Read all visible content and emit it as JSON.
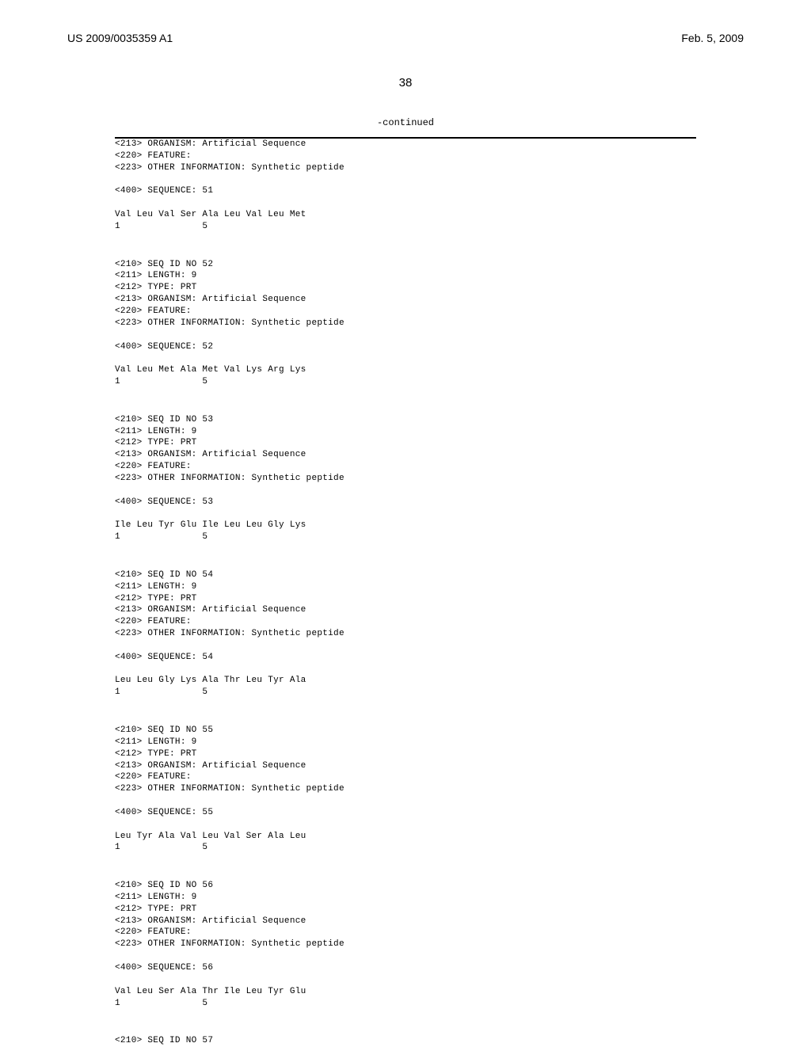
{
  "header": {
    "pub_no": "US 2009/0035359 A1",
    "date": "Feb. 5, 2009"
  },
  "page_number": "38",
  "continued": "-continued",
  "seq51": {
    "l213": "<213> ORGANISM: Artificial Sequence",
    "l220": "<220> FEATURE:",
    "l223": "<223> OTHER INFORMATION: Synthetic peptide",
    "l400": "<400> SEQUENCE: 51",
    "seq": "Val Leu Val Ser Ala Leu Val Leu Met",
    "pos": "1               5"
  },
  "seq52": {
    "l210": "<210> SEQ ID NO 52",
    "l211": "<211> LENGTH: 9",
    "l212": "<212> TYPE: PRT",
    "l213": "<213> ORGANISM: Artificial Sequence",
    "l220": "<220> FEATURE:",
    "l223": "<223> OTHER INFORMATION: Synthetic peptide",
    "l400": "<400> SEQUENCE: 52",
    "seq": "Val Leu Met Ala Met Val Lys Arg Lys",
    "pos": "1               5"
  },
  "seq53": {
    "l210": "<210> SEQ ID NO 53",
    "l211": "<211> LENGTH: 9",
    "l212": "<212> TYPE: PRT",
    "l213": "<213> ORGANISM: Artificial Sequence",
    "l220": "<220> FEATURE:",
    "l223": "<223> OTHER INFORMATION: Synthetic peptide",
    "l400": "<400> SEQUENCE: 53",
    "seq": "Ile Leu Tyr Glu Ile Leu Leu Gly Lys",
    "pos": "1               5"
  },
  "seq54": {
    "l210": "<210> SEQ ID NO 54",
    "l211": "<211> LENGTH: 9",
    "l212": "<212> TYPE: PRT",
    "l213": "<213> ORGANISM: Artificial Sequence",
    "l220": "<220> FEATURE:",
    "l223": "<223> OTHER INFORMATION: Synthetic peptide",
    "l400": "<400> SEQUENCE: 54",
    "seq": "Leu Leu Gly Lys Ala Thr Leu Tyr Ala",
    "pos": "1               5"
  },
  "seq55": {
    "l210": "<210> SEQ ID NO 55",
    "l211": "<211> LENGTH: 9",
    "l212": "<212> TYPE: PRT",
    "l213": "<213> ORGANISM: Artificial Sequence",
    "l220": "<220> FEATURE:",
    "l223": "<223> OTHER INFORMATION: Synthetic peptide",
    "l400": "<400> SEQUENCE: 55",
    "seq": "Leu Tyr Ala Val Leu Val Ser Ala Leu",
    "pos": "1               5"
  },
  "seq56": {
    "l210": "<210> SEQ ID NO 56",
    "l211": "<211> LENGTH: 9",
    "l212": "<212> TYPE: PRT",
    "l213": "<213> ORGANISM: Artificial Sequence",
    "l220": "<220> FEATURE:",
    "l223": "<223> OTHER INFORMATION: Synthetic peptide",
    "l400": "<400> SEQUENCE: 56",
    "seq": "Val Leu Ser Ala Thr Ile Leu Tyr Glu",
    "pos": "1               5"
  },
  "seq57": {
    "l210": "<210> SEQ ID NO 57"
  }
}
